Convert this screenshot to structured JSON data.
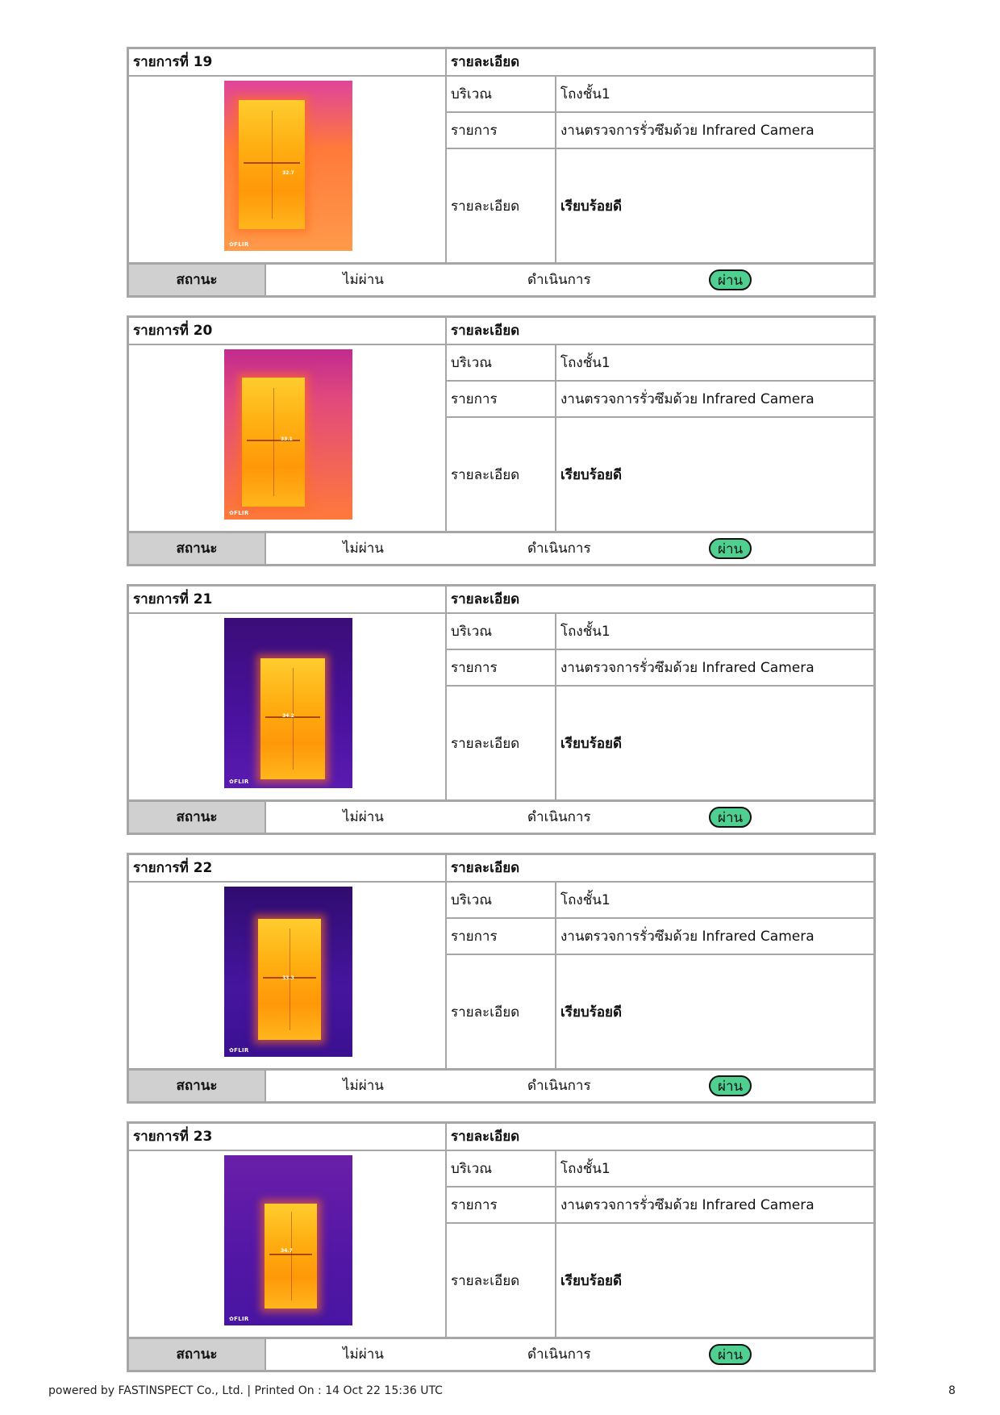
{
  "records": [
    {
      "title": "รายการที่ 19",
      "details_header": "รายละเอียด",
      "fields": {
        "area_label": "บริเวณ",
        "area_value": "โถงชั้น1",
        "item_label": "รายการ",
        "item_value": "งานตรวจการรั่วซึมด้วย Infrared Camera",
        "detail_label": "รายละเอียด",
        "detail_value": "เรียบร้อยดี"
      },
      "photo": {
        "temperature": "32.7",
        "brand": "FLIR",
        "palette": "iron"
      },
      "status": {
        "label": "สถานะ",
        "fail": "ไม่ผ่าน",
        "in_progress": "ดำเนินการ",
        "pass": "ผ่าน",
        "selected": "pass"
      }
    },
    {
      "title": "รายการที่ 20",
      "details_header": "รายละเอียด",
      "fields": {
        "area_label": "บริเวณ",
        "area_value": "โถงชั้น1",
        "item_label": "รายการ",
        "item_value": "งานตรวจการรั่วซึมด้วย Infrared Camera",
        "detail_label": "รายละเอียด",
        "detail_value": "เรียบร้อยดี"
      },
      "photo": {
        "temperature": "33.1",
        "brand": "FLIR",
        "palette": "iron"
      },
      "status": {
        "label": "สถานะ",
        "fail": "ไม่ผ่าน",
        "in_progress": "ดำเนินการ",
        "pass": "ผ่าน",
        "selected": "pass"
      }
    },
    {
      "title": "รายการที่ 21",
      "details_header": "รายละเอียด",
      "fields": {
        "area_label": "บริเวณ",
        "area_value": "โถงชั้น1",
        "item_label": "รายการ",
        "item_value": "งานตรวจการรั่วซึมด้วย Infrared Camera",
        "detail_label": "รายละเอียด",
        "detail_value": "เรียบร้อยดี"
      },
      "photo": {
        "temperature": "34.2",
        "brand": "FLIR",
        "palette": "iron"
      },
      "status": {
        "label": "สถานะ",
        "fail": "ไม่ผ่าน",
        "in_progress": "ดำเนินการ",
        "pass": "ผ่าน",
        "selected": "pass"
      }
    },
    {
      "title": "รายการที่ 22",
      "details_header": "รายละเอียด",
      "fields": {
        "area_label": "บริเวณ",
        "area_value": "โถงชั้น1",
        "item_label": "รายการ",
        "item_value": "งานตรวจการรั่วซึมด้วย Infrared Camera",
        "detail_label": "รายละเอียด",
        "detail_value": "เรียบร้อยดี"
      },
      "photo": {
        "temperature": "33.3",
        "brand": "FLIR",
        "palette": "iron"
      },
      "status": {
        "label": "สถานะ",
        "fail": "ไม่ผ่าน",
        "in_progress": "ดำเนินการ",
        "pass": "ผ่าน",
        "selected": "pass"
      }
    },
    {
      "title": "รายการที่ 23",
      "details_header": "รายละเอียด",
      "fields": {
        "area_label": "บริเวณ",
        "area_value": "โถงชั้น1",
        "item_label": "รายการ",
        "item_value": "งานตรวจการรั่วซึมด้วย Infrared Camera",
        "detail_label": "รายละเอียด",
        "detail_value": "เรียบร้อยดี"
      },
      "photo": {
        "temperature": "34.7",
        "brand": "FLIR",
        "palette": "iron"
      },
      "status": {
        "label": "สถานะ",
        "fail": "ไม่ผ่าน",
        "in_progress": "ดำเนินการ",
        "pass": "ผ่าน",
        "selected": "pass"
      }
    }
  ],
  "footer": {
    "text": "powered by FASTINSPECT Co., Ltd. | Printed On : 14 Oct 22 15:36 UTC",
    "page_number": "8"
  },
  "colors": {
    "border": "#a6a6a6",
    "status_label_bg": "#d0d0d0",
    "pass_badge": "#4fcf90"
  }
}
